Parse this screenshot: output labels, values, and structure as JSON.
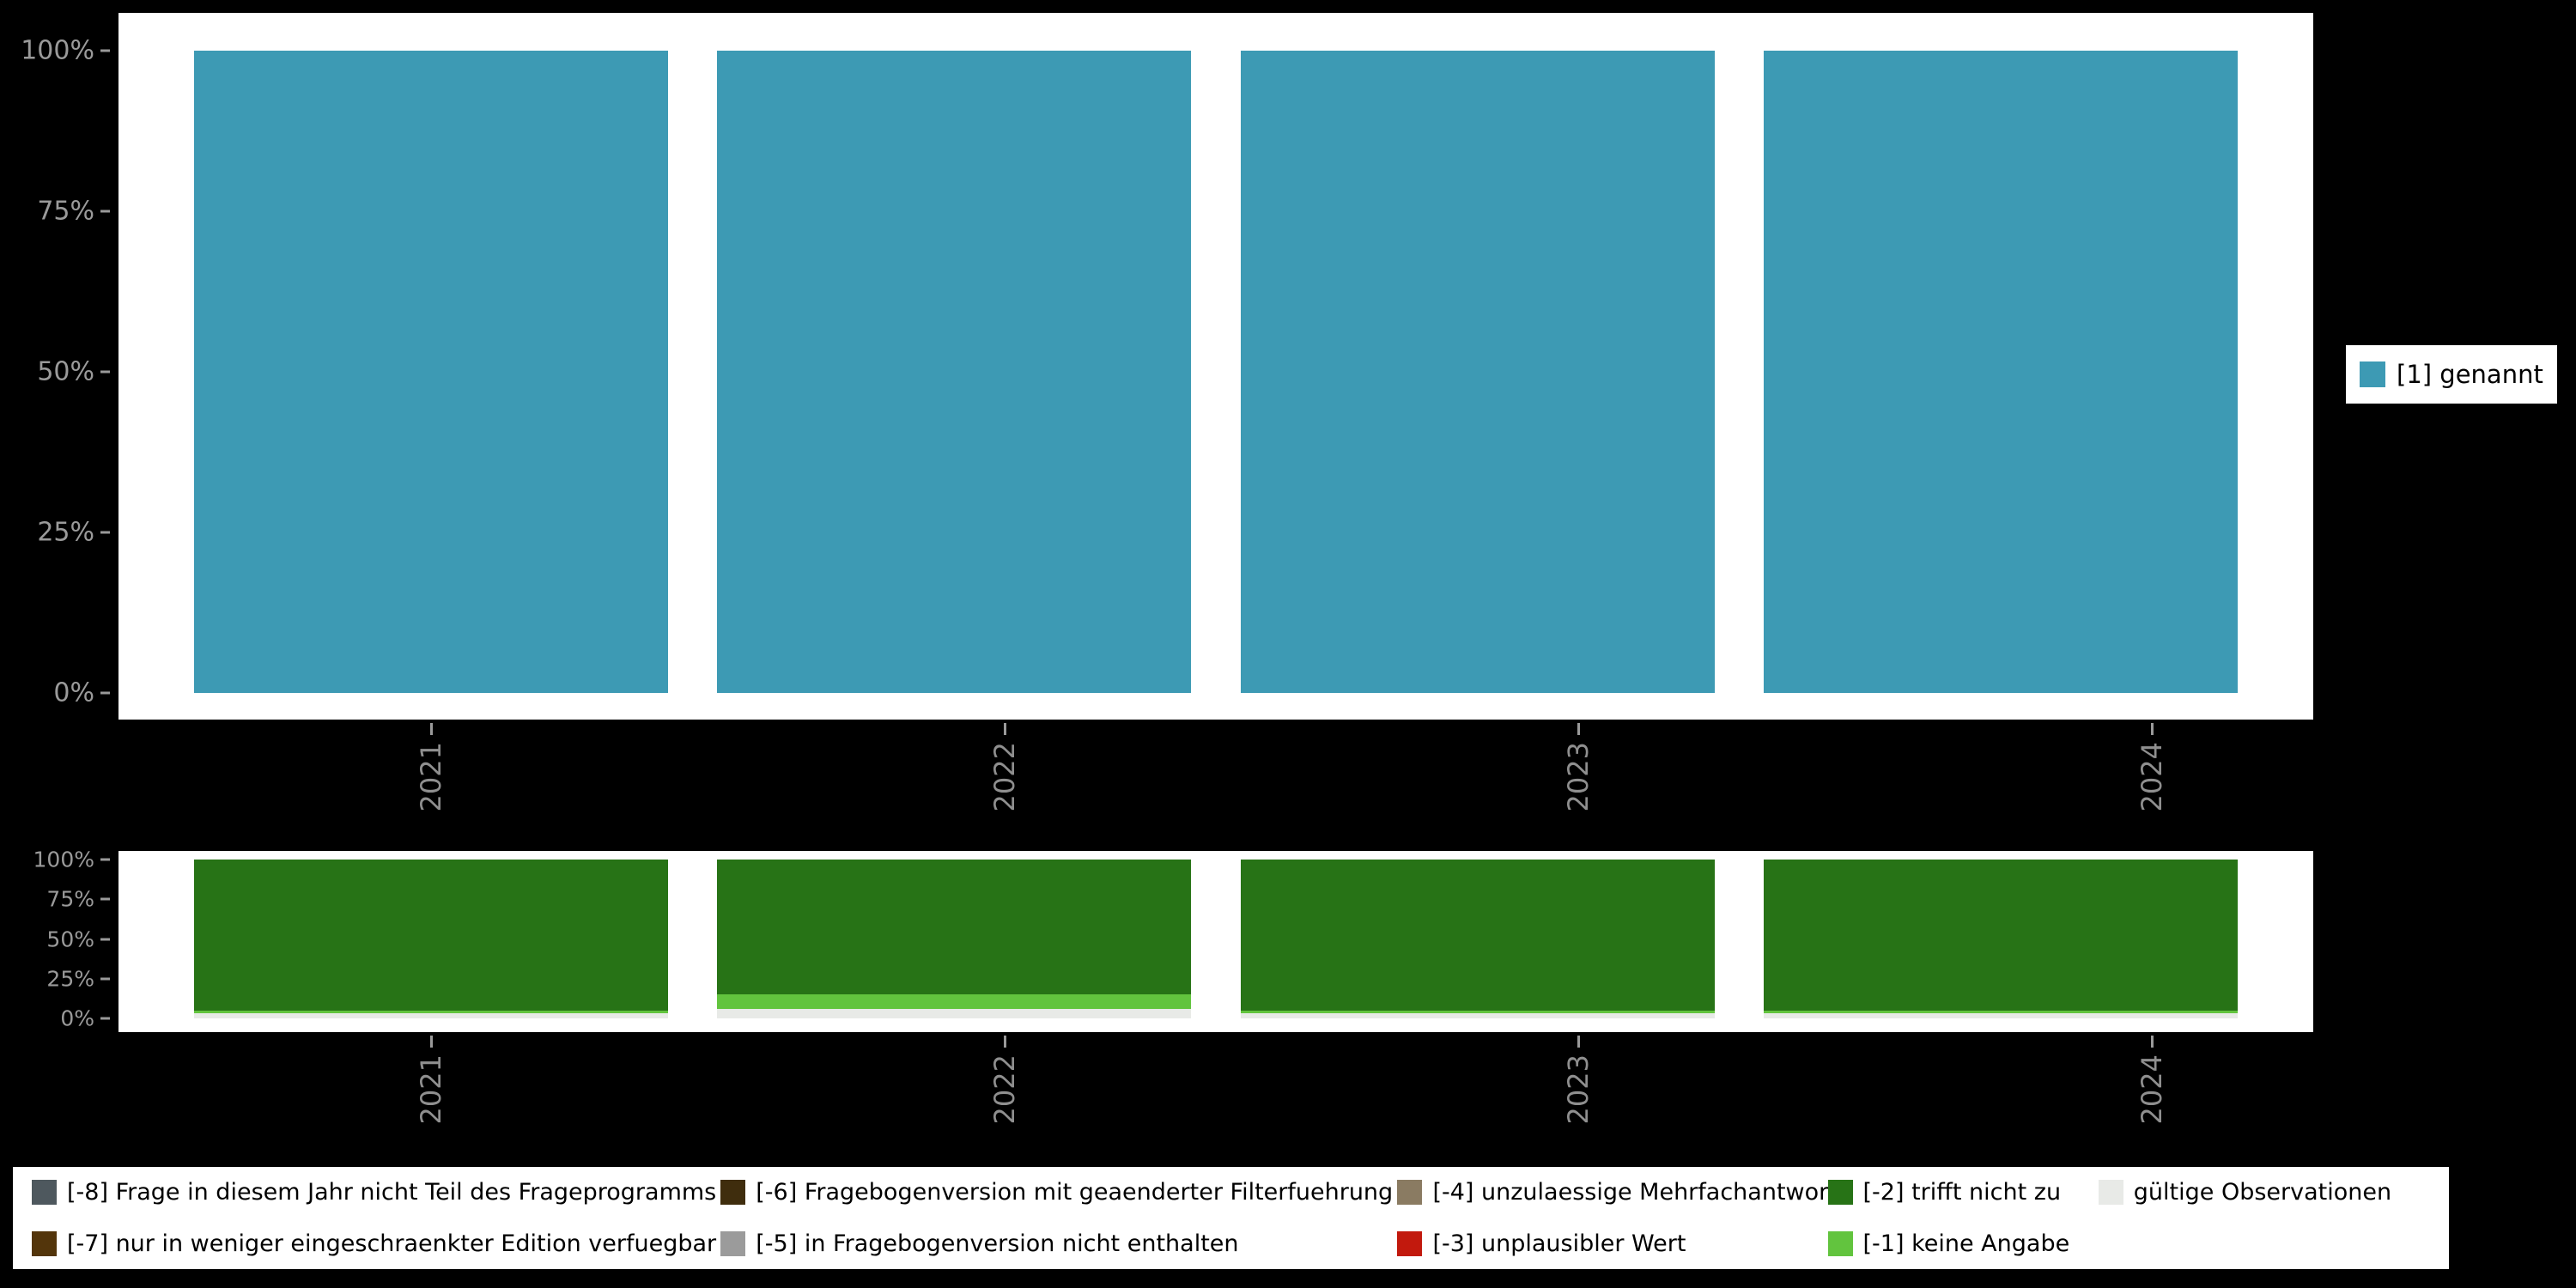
{
  "page": {
    "background": "#000000",
    "panel_background": "#ffffff",
    "axis_text_color": "#9a9a9a"
  },
  "axes": {
    "y_tick_labels_top_to_bottom": [
      "100%",
      "75%",
      "50%",
      "25%",
      "0%"
    ],
    "x_tick_labels": [
      "2021",
      "2022",
      "2023",
      "2024"
    ]
  },
  "chart_data": [
    {
      "type": "bar",
      "stacked": true,
      "percent": true,
      "title": "",
      "xlabel": "",
      "ylabel": "",
      "ylim": [
        0,
        100
      ],
      "categories": [
        "2021",
        "2022",
        "2023",
        "2024"
      ],
      "y_ticks": [
        "100%",
        "75%",
        "50%",
        "25%",
        "0%"
      ],
      "stack_order": "top-to-bottom",
      "series": [
        {
          "name": "[1] genannt",
          "color": "#3d9ab4",
          "values": [
            100,
            100,
            100,
            100
          ]
        }
      ],
      "legend_position": "right",
      "legend": [
        {
          "label": "[1] genannt",
          "color": "#3d9ab4"
        }
      ]
    },
    {
      "type": "bar",
      "stacked": true,
      "percent": true,
      "title": "",
      "xlabel": "",
      "ylabel": "",
      "ylim": [
        0,
        100
      ],
      "categories": [
        "2021",
        "2022",
        "2023",
        "2024"
      ],
      "y_ticks": [
        "100%",
        "75%",
        "50%",
        "25%",
        "0%"
      ],
      "stack_order": "top-to-bottom",
      "series": [
        {
          "name": "[-2] trifft nicht zu",
          "color": "#277316",
          "values": [
            95,
            85,
            95,
            95
          ]
        },
        {
          "name": "[-1] keine Angabe",
          "color": "#62c43e",
          "values": [
            2,
            9,
            2,
            2
          ]
        },
        {
          "name": "gültige Observationen",
          "color": "#e8eae7",
          "values": [
            3,
            6,
            3,
            3
          ]
        }
      ],
      "legend_position": "bottom",
      "legend": [
        {
          "label": "[-8] Frage in diesem Jahr nicht Teil des Frageprogramms",
          "color": "#4e585e"
        },
        {
          "label": "[-6] Fragebogenversion mit geaenderter Filterfuehrung",
          "color": "#3f2d0d"
        },
        {
          "label": "[-4] unzulaessige Mehrfachantwort",
          "color": "#8a7b62"
        },
        {
          "label": "[-2] trifft nicht zu",
          "color": "#277316"
        },
        {
          "label": "gültige Observationen",
          "color": "#e8eae7"
        },
        {
          "label": "[-7] nur in weniger eingeschraenkter Edition verfuegbar",
          "color": "#53350b"
        },
        {
          "label": "[-5] in Fragebogenversion nicht enthalten",
          "color": "#9b9b9b"
        },
        {
          "label": "[-3] unplausibler Wert",
          "color": "#c2190d"
        },
        {
          "label": "[-1] keine Angabe",
          "color": "#62c43e"
        }
      ]
    }
  ]
}
